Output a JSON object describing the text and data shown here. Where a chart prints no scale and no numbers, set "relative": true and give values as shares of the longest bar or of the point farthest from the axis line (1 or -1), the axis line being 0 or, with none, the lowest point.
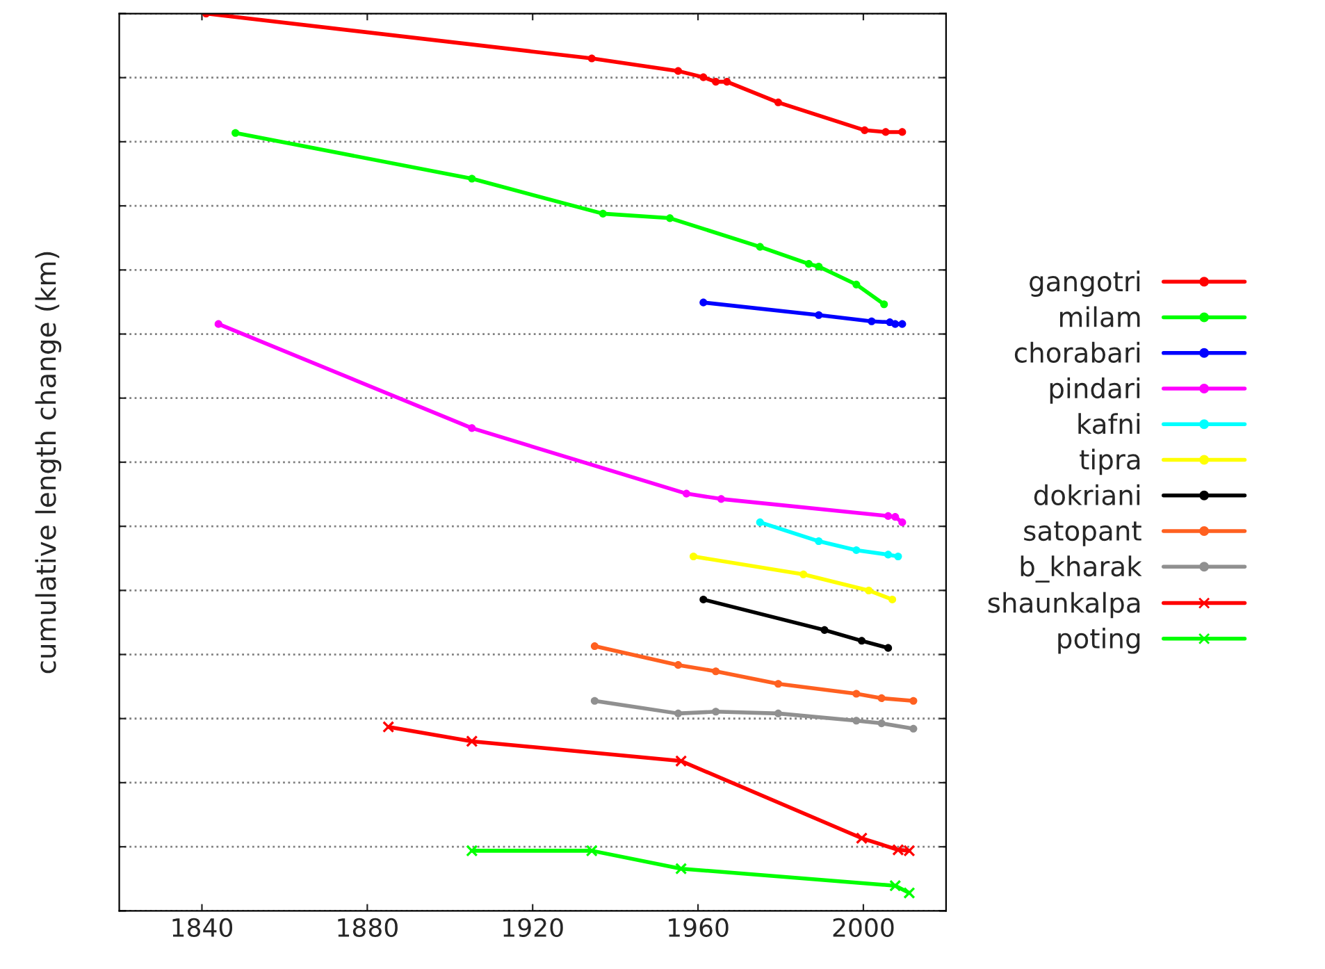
{
  "chart_data": {
    "type": "line",
    "relative": true,
    "ylabel": "cumulative length change (km)",
    "xlim": [
      1820,
      2020
    ],
    "xticks": [
      1840,
      1880,
      1920,
      1960,
      2000
    ],
    "tick_labels": "x",
    "grid": "y",
    "legend": "right",
    "line_style": "solid",
    "series": [
      {
        "name": "gangotri",
        "color": "#ff0000",
        "marker": "circle",
        "x": [
          1841,
          1934.3,
          1955.2,
          1961.3,
          1964.3,
          1967,
          1979.4,
          2000.3,
          2005.4,
          2009.4
        ],
        "values": [
          1.0,
          0.95,
          0.936,
          0.929,
          0.924,
          0.924,
          0.901,
          0.87,
          0.868,
          0.868
        ]
      },
      {
        "name": "milam",
        "color": "#00ff00",
        "marker": "circle",
        "x": [
          1848.1,
          1905.3,
          1937,
          1953.2,
          1975,
          1986.8,
          1989.2,
          1998.3,
          2005
        ],
        "values": [
          0.867,
          0.816,
          0.777,
          0.772,
          0.74,
          0.721,
          0.718,
          0.698,
          0.676
        ]
      },
      {
        "name": "chorabari",
        "color": "#0000ff",
        "marker": "circle",
        "x": [
          1961.3,
          1989.2,
          2002,
          2006.4,
          2007.7,
          2009.4
        ],
        "values": [
          0.678,
          0.664,
          0.657,
          0.656,
          0.654,
          0.654
        ]
      },
      {
        "name": "pindari",
        "color": "#ff00ff",
        "marker": "circle",
        "x": [
          1844,
          1905.3,
          1957.2,
          1965.6,
          2006,
          2007.7,
          2009.4
        ],
        "values": [
          0.654,
          0.538,
          0.465,
          0.459,
          0.44,
          0.439,
          0.433
        ]
      },
      {
        "name": "kafni",
        "color": "#00ffff",
        "marker": "circle",
        "x": [
          1975,
          1989.2,
          1998.3,
          2006,
          2008.4
        ],
        "values": [
          0.433,
          0.412,
          0.402,
          0.397,
          0.395
        ]
      },
      {
        "name": "tipra",
        "color": "#ffff00",
        "marker": "circle",
        "x": [
          1958.9,
          1985.5,
          2001.3,
          2007
        ],
        "values": [
          0.395,
          0.375,
          0.357,
          0.347
        ]
      },
      {
        "name": "dokriani",
        "color": "#000000",
        "marker": "circle",
        "x": [
          1961.3,
          1990.6,
          1999.6,
          2006
        ],
        "values": [
          0.347,
          0.313,
          0.301,
          0.293
        ]
      },
      {
        "name": "satopant",
        "color": "#ff6020",
        "marker": "circle",
        "x": [
          1935,
          1955.2,
          1964.3,
          1979.4,
          1998.3,
          2004.4,
          2012.1
        ],
        "values": [
          0.295,
          0.274,
          0.267,
          0.253,
          0.242,
          0.237,
          0.234
        ]
      },
      {
        "name": "b_kharak",
        "color": "#909090",
        "marker": "circle",
        "x": [
          1935,
          1955.2,
          1964.3,
          1979.4,
          1998.3,
          2004.4,
          2012.1
        ],
        "values": [
          0.234,
          0.22,
          0.222,
          0.22,
          0.212,
          0.209,
          0.203
        ]
      },
      {
        "name": "shaunkalpa",
        "color": "#ff0000",
        "marker": "cross",
        "x": [
          1885.1,
          1905.3,
          1955.9,
          1999.6,
          2008.4,
          2011.1
        ],
        "values": [
          0.205,
          0.189,
          0.167,
          0.081,
          0.068,
          0.067
        ]
      },
      {
        "name": "poting",
        "color": "#00ff00",
        "marker": "cross",
        "x": [
          1905.3,
          1934.3,
          1955.9,
          2007.7,
          2011.1
        ],
        "values": [
          0.067,
          0.067,
          0.047,
          0.028,
          0.02
        ]
      }
    ]
  }
}
